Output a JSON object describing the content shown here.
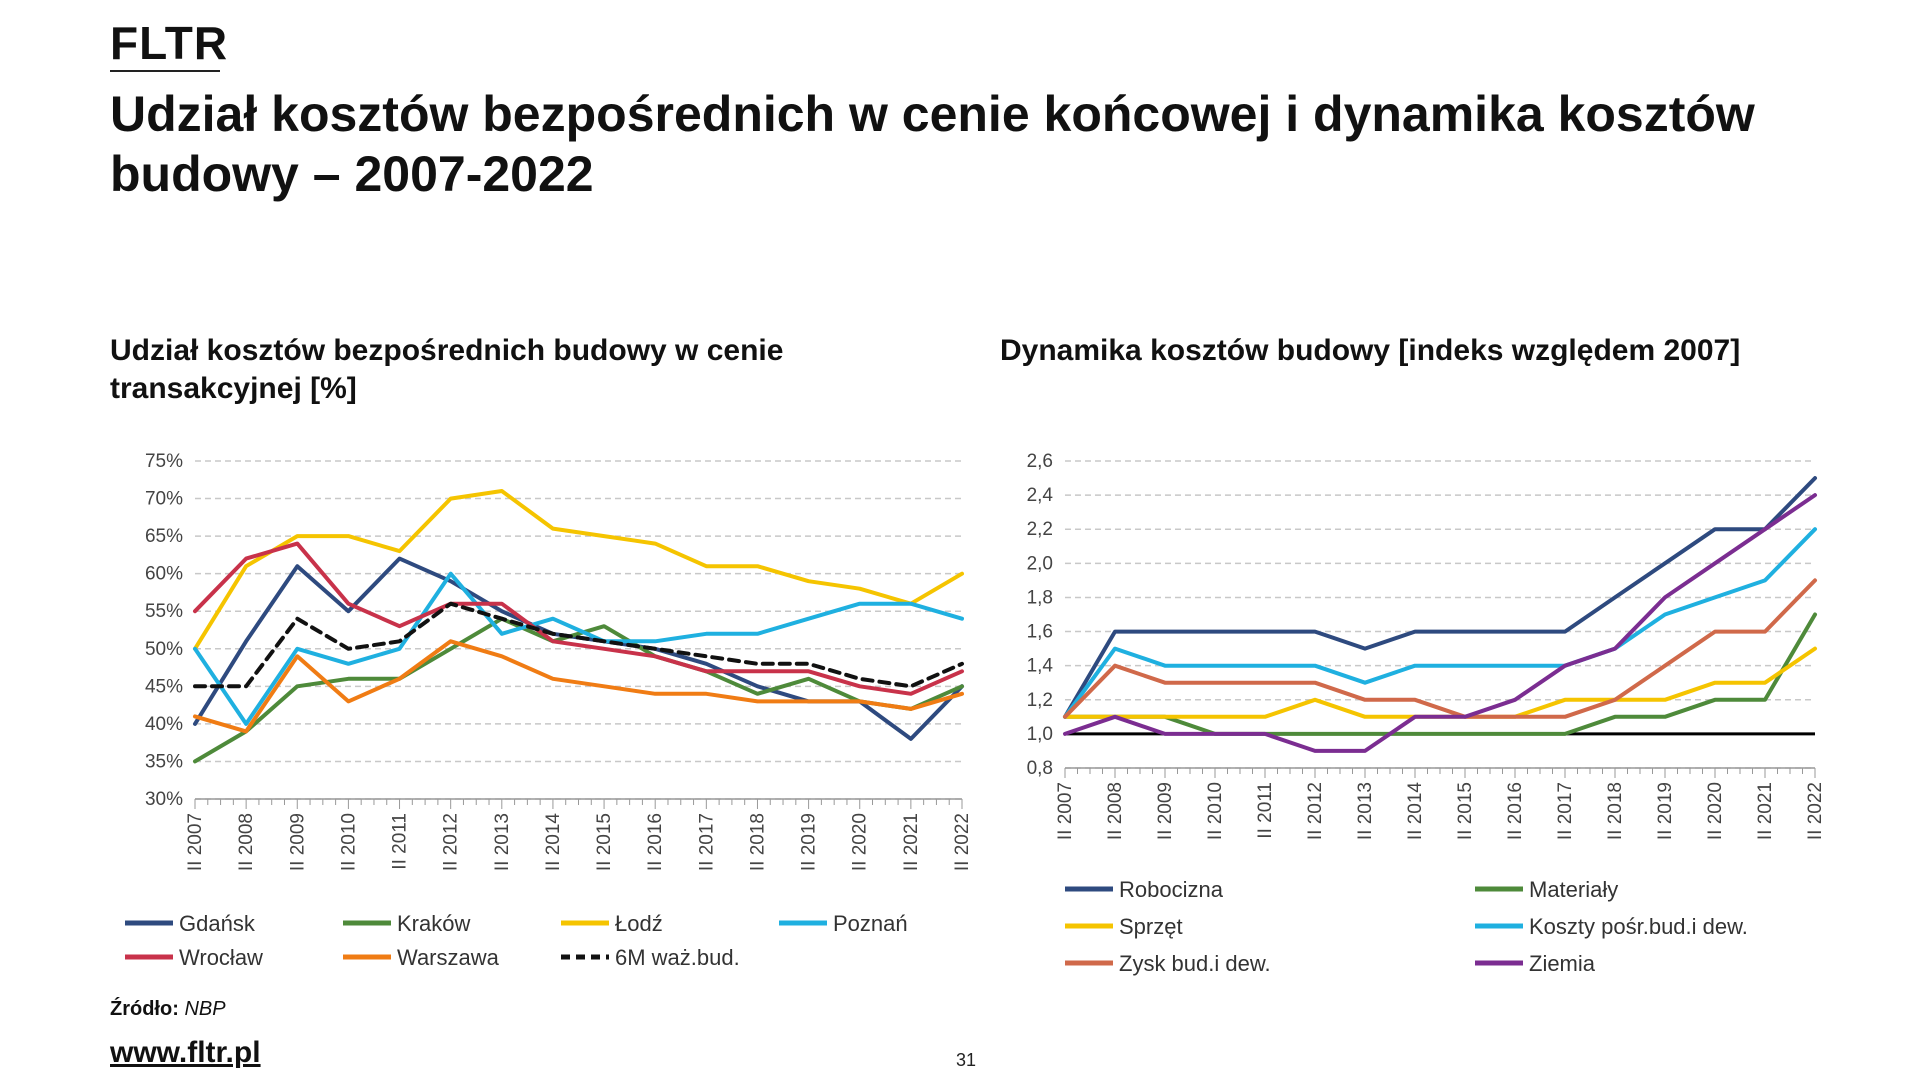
{
  "brand": "FLTR",
  "title": "Udział kosztów bezpośrednich w cenie końcowej i dynamika kosztów budowy – 2007-2022",
  "left_subtitle": "Udział kosztów bezpośrednich budowy w cenie transakcyjnej [%]",
  "right_subtitle": "Dynamika kosztów budowy [indeks względem 2007]",
  "footer": {
    "source_label": "Źródło:",
    "source_value": "NBP",
    "site": "www.fltr.pl",
    "page_number": "31"
  },
  "chart_data": [
    {
      "type": "line",
      "title": "Udział kosztów bezpośrednich budowy w cenie transakcyjnej [%]",
      "x": [
        "II 2007",
        "II 2008",
        "II 2009",
        "II 2010",
        "II 2011",
        "II 2012",
        "II 2013",
        "II 2014",
        "II 2015",
        "II 2016",
        "II 2017",
        "II 2018",
        "II 2019",
        "II 2020",
        "II 2021",
        "II 2022"
      ],
      "yticks": [
        "30%",
        "35%",
        "40%",
        "45%",
        "50%",
        "55%",
        "60%",
        "65%",
        "70%",
        "75%"
      ],
      "ylim": [
        30,
        75
      ],
      "xlabel": "",
      "ylabel": "",
      "series": [
        {
          "name": "Gdańsk",
          "color": "#2e4a7f",
          "values": [
            40,
            51,
            61,
            55,
            62,
            59,
            55,
            52,
            51,
            50,
            48,
            45,
            43,
            43,
            38,
            45
          ]
        },
        {
          "name": "Kraków",
          "color": "#4e8a3a",
          "values": [
            35,
            39,
            45,
            46,
            46,
            50,
            54,
            51,
            53,
            49,
            47,
            44,
            46,
            43,
            42,
            45
          ]
        },
        {
          "name": "Łodź",
          "color": "#f5c400",
          "values": [
            50,
            61,
            65,
            65,
            63,
            70,
            71,
            66,
            65,
            64,
            61,
            61,
            59,
            58,
            56,
            60
          ]
        },
        {
          "name": "Poznań",
          "color": "#1fb0e0",
          "values": [
            50,
            40,
            50,
            48,
            50,
            60,
            52,
            54,
            51,
            51,
            52,
            52,
            54,
            56,
            56,
            54
          ]
        },
        {
          "name": "Wrocław",
          "color": "#c8324a",
          "values": [
            55,
            62,
            64,
            56,
            53,
            56,
            56,
            51,
            50,
            49,
            47,
            47,
            47,
            45,
            44,
            47
          ]
        },
        {
          "name": "Warszawa",
          "color": "#f07c14",
          "values": [
            41,
            39,
            49,
            43,
            46,
            51,
            49,
            46,
            45,
            44,
            44,
            43,
            43,
            43,
            42,
            44
          ]
        },
        {
          "name": "6M waż.bud.",
          "color": "#111111",
          "dashed": true,
          "values": [
            45,
            45,
            54,
            50,
            51,
            56,
            54,
            52,
            51,
            50,
            49,
            48,
            48,
            46,
            45,
            48
          ]
        }
      ]
    },
    {
      "type": "line",
      "title": "Dynamika kosztów budowy [indeks względem 2007]",
      "x": [
        "II 2007",
        "II 2008",
        "II 2009",
        "II 2010",
        "II 2011",
        "II 2012",
        "II 2013",
        "II 2014",
        "II 2015",
        "II 2016",
        "II 2017",
        "II 2018",
        "II 2019",
        "II 2020",
        "II 2021",
        "II 2022"
      ],
      "yticks": [
        "0,8",
        "1,0",
        "1,2",
        "1,4",
        "1,6",
        "1,8",
        "2,0",
        "2,2",
        "2,4",
        "2,6"
      ],
      "ylim": [
        0.8,
        2.6
      ],
      "reference_line": 1.0,
      "xlabel": "",
      "ylabel": "",
      "series": [
        {
          "name": "Robocizna",
          "color": "#2e4a7f",
          "values": [
            1.1,
            1.6,
            1.6,
            1.6,
            1.6,
            1.6,
            1.5,
            1.6,
            1.6,
            1.6,
            1.6,
            1.8,
            2.0,
            2.2,
            2.2,
            2.5
          ]
        },
        {
          "name": "Materiały",
          "color": "#4e8a3a",
          "values": [
            1.1,
            1.1,
            1.1,
            1.0,
            1.0,
            1.0,
            1.0,
            1.0,
            1.0,
            1.0,
            1.0,
            1.1,
            1.1,
            1.2,
            1.2,
            1.7
          ]
        },
        {
          "name": "Sprzęt",
          "color": "#f5c400",
          "values": [
            1.1,
            1.1,
            1.1,
            1.1,
            1.1,
            1.2,
            1.1,
            1.1,
            1.1,
            1.1,
            1.2,
            1.2,
            1.2,
            1.3,
            1.3,
            1.5
          ]
        },
        {
          "name": "Koszty pośr.bud.i dew.",
          "color": "#1fb0e0",
          "values": [
            1.1,
            1.5,
            1.4,
            1.4,
            1.4,
            1.4,
            1.3,
            1.4,
            1.4,
            1.4,
            1.4,
            1.5,
            1.7,
            1.8,
            1.9,
            2.2
          ]
        },
        {
          "name": "Zysk bud.i dew.",
          "color": "#d0694a",
          "values": [
            1.1,
            1.4,
            1.3,
            1.3,
            1.3,
            1.3,
            1.2,
            1.2,
            1.1,
            1.1,
            1.1,
            1.2,
            1.4,
            1.6,
            1.6,
            1.9
          ]
        },
        {
          "name": "Ziemia",
          "color": "#7b2d91",
          "values": [
            1.0,
            1.1,
            1.0,
            1.0,
            1.0,
            0.9,
            0.9,
            1.1,
            1.1,
            1.2,
            1.4,
            1.5,
            1.8,
            2.0,
            2.2,
            2.4
          ]
        }
      ]
    }
  ]
}
